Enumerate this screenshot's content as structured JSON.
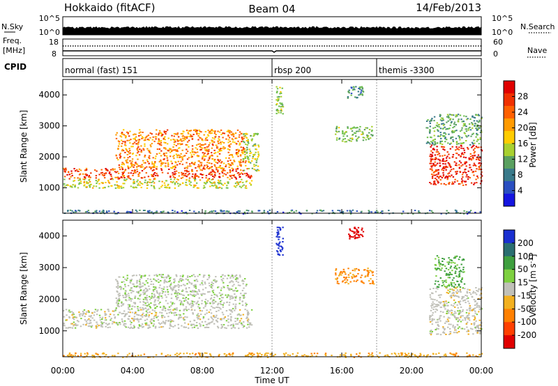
{
  "header": {
    "station": "Hokkaido (fitACF)",
    "beam": "Beam 04",
    "date": "14/Feb/2013"
  },
  "top_panels": {
    "nsky_label": "N.Sky",
    "nsearch_label": "N.Search",
    "nsky_ticks": [
      "10^5",
      "10^0"
    ],
    "nsearch_ticks": [
      "10^5",
      "10^0"
    ],
    "freq_label_line1": "Freq.",
    "freq_label_line2": "[MHz]",
    "freq_ticks": [
      "18",
      "8"
    ],
    "nave_label": "Nave",
    "nave_ticks": [
      "60",
      "0"
    ],
    "cpid_label": "CPID",
    "cpid_modes": [
      {
        "label": "normal (fast) 151",
        "start_hour": 0
      },
      {
        "label": "rbsp 200",
        "start_hour": 12.0
      },
      {
        "label": "themis -3300",
        "start_hour": 18.0
      }
    ]
  },
  "power_panel": {
    "ylabel": "Slant Range [km]",
    "y_ticks": [
      "4000",
      "3000",
      "2000",
      "1000"
    ],
    "colorbar_label": "Power [dB]",
    "colorbar_ticks": [
      "28",
      "24",
      "20",
      "16",
      "12",
      "8",
      "4"
    ]
  },
  "velocity_panel": {
    "ylabel": "Slant Range [km]",
    "y_ticks": [
      "4000",
      "3000",
      "2000",
      "1000"
    ],
    "colorbar_label": "Velocity [m s",
    "colorbar_label_exp": "-1",
    "colorbar_label_close": "]",
    "colorbar_ticks": [
      "200",
      "100",
      "50",
      "15",
      "-15",
      "-50",
      "-100",
      "-200"
    ]
  },
  "x_axis": {
    "label": "Time UT",
    "ticks": [
      "00:00",
      "04:00",
      "08:00",
      "12:00",
      "16:00",
      "20:00",
      "00:00"
    ]
  },
  "chart_data": {
    "type": "heatmap",
    "x_range_hours": [
      0,
      24
    ],
    "y_range_km": [
      180,
      4500
    ],
    "power_scale_db": [
      0,
      30
    ],
    "velocity_scale": [
      -250,
      250
    ],
    "power_regions": [
      {
        "t0": 0.0,
        "t1": 10.8,
        "r0": 1300,
        "r1": 1650,
        "power": 26
      },
      {
        "t0": 0.0,
        "t1": 10.8,
        "r0": 1000,
        "r1": 1300,
        "power": 16
      },
      {
        "t0": 3.0,
        "t1": 10.5,
        "r0": 1650,
        "r1": 2900,
        "power": 22
      },
      {
        "t0": 10.3,
        "t1": 11.2,
        "r0": 1500,
        "r1": 2800,
        "power": 14
      },
      {
        "t0": 12.2,
        "t1": 12.6,
        "r0": 3400,
        "r1": 4300,
        "power": 14
      },
      {
        "t0": 15.6,
        "t1": 17.8,
        "r0": 2500,
        "r1": 3000,
        "power": 12
      },
      {
        "t0": 16.3,
        "t1": 17.2,
        "r0": 3900,
        "r1": 4300,
        "power": 8
      },
      {
        "t0": 21.0,
        "t1": 24.0,
        "r0": 1100,
        "r1": 2400,
        "power": 28
      },
      {
        "t0": 20.8,
        "t1": 24.0,
        "r0": 2400,
        "r1": 3400,
        "power": 10
      },
      {
        "t0": 0.0,
        "t1": 24.0,
        "r0": 180,
        "r1": 300,
        "power": 6
      }
    ],
    "velocity_regions": [
      {
        "t0": 0.0,
        "t1": 10.8,
        "r0": 1100,
        "r1": 1700,
        "velocity": 0
      },
      {
        "t0": 3.0,
        "t1": 10.5,
        "r0": 1700,
        "r1": 2800,
        "velocity": 5
      },
      {
        "t0": 12.2,
        "t1": 12.6,
        "r0": 3400,
        "r1": 4300,
        "velocity": 220
      },
      {
        "t0": 15.6,
        "t1": 17.8,
        "r0": 2500,
        "r1": 3000,
        "velocity": -60
      },
      {
        "t0": 16.3,
        "t1": 17.2,
        "r0": 3900,
        "r1": 4300,
        "velocity": -220
      },
      {
        "t0": 21.0,
        "t1": 24.0,
        "r0": 900,
        "r1": 2400,
        "velocity": 0
      },
      {
        "t0": 21.3,
        "t1": 23.0,
        "r0": 2400,
        "r1": 3400,
        "velocity": 40
      },
      {
        "t0": 0.0,
        "t1": 24.0,
        "r0": 180,
        "r1": 320,
        "velocity": -40
      }
    ]
  }
}
